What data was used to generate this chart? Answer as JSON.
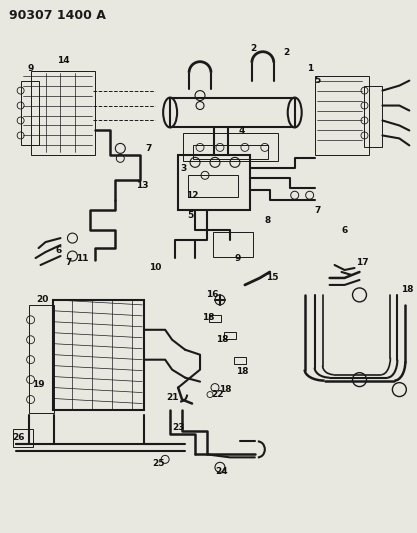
{
  "title": "90307 1400 A",
  "bg_color": "#e8e8e0",
  "line_color": "#1a1a1a",
  "title_fontsize": 9,
  "label_fontsize": 6.5,
  "figsize": [
    4.17,
    5.33
  ],
  "dpi": 100
}
